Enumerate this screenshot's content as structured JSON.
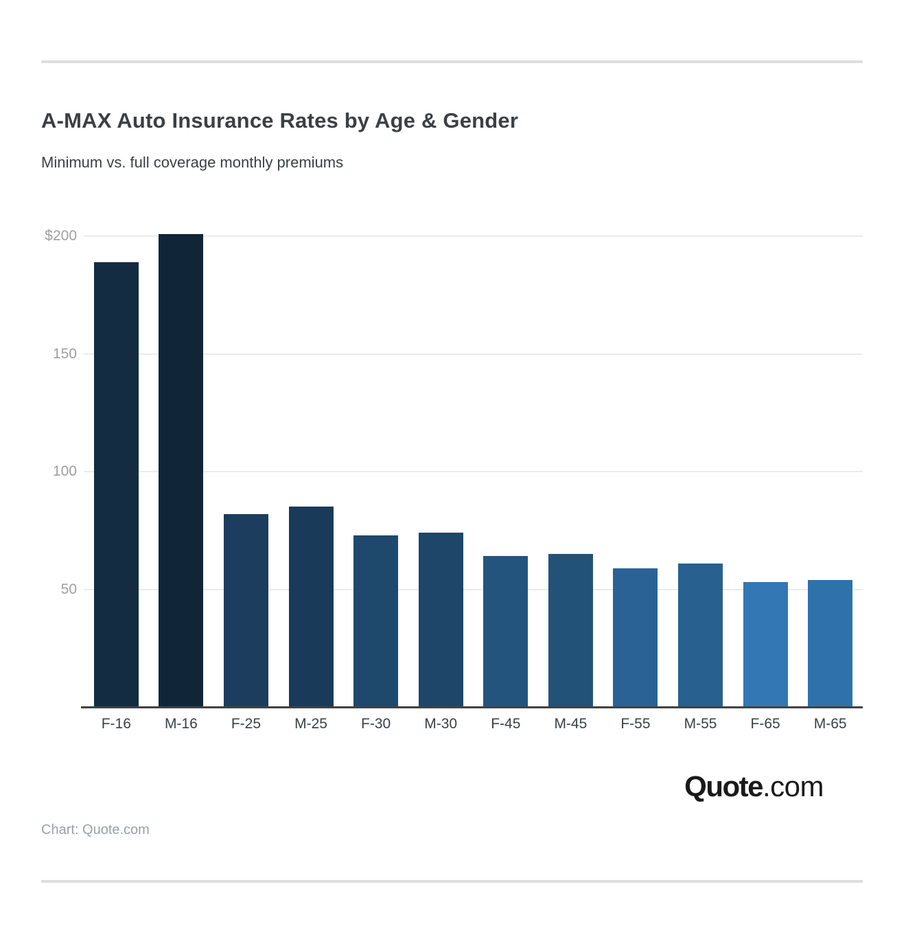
{
  "header": {
    "title": "A-MAX Auto Insurance Rates by Age & Gender",
    "subtitle": "Minimum vs. full coverage monthly premiums"
  },
  "chart_data": {
    "type": "bar",
    "title": "A-MAX Auto Insurance Rates by Age & Gender",
    "subtitle": "Minimum vs. full coverage monthly premiums",
    "categories": [
      "F-16",
      "M-16",
      "F-25",
      "M-25",
      "F-30",
      "M-30",
      "F-45",
      "M-45",
      "F-55",
      "M-55",
      "F-65",
      "M-65"
    ],
    "values": [
      189,
      201,
      82,
      85,
      73,
      74,
      64,
      65,
      59,
      61,
      53,
      54
    ],
    "bar_colors": [
      "#132c42",
      "#112539",
      "#1c3d5e",
      "#1a3a59",
      "#1f486d",
      "#1e4669",
      "#23547d",
      "#225278",
      "#2b6296",
      "#28608f",
      "#3377b4",
      "#2f72ab"
    ],
    "xlabel": "",
    "ylabel": "",
    "ylim": [
      0,
      200
    ],
    "yticks": [
      {
        "value": 200,
        "label": "$200"
      },
      {
        "value": 150,
        "label": "150"
      },
      {
        "value": 100,
        "label": "100"
      },
      {
        "value": 50,
        "label": "50"
      }
    ],
    "grid": true,
    "legend": false
  },
  "footer": {
    "logo_bold": "Quote",
    "logo_suffix": ".com",
    "credit": "Chart: Quote.com"
  },
  "colors": {
    "axis": "#424242",
    "grid": "#ebebeb",
    "tick_label": "#9e9e9e",
    "text": "#3c4043",
    "divider": "#dedede"
  }
}
